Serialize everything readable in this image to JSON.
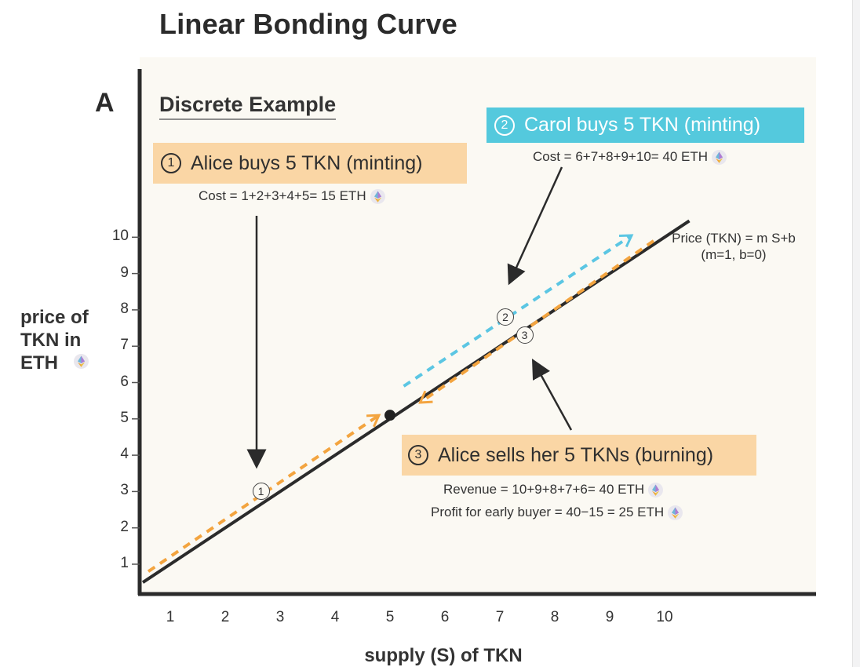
{
  "title": "Linear Bonding Curve",
  "panel_letter": "A",
  "subtitle": "Discrete Example",
  "formula": {
    "line1": "Price (TKN) = m S+b",
    "line2": "(m=1,  b=0)"
  },
  "callouts": {
    "alice_buy": {
      "number": "1",
      "text": "Alice buys 5 TKN (minting)",
      "cost": "Cost = 1+2+3+4+5= 15 ETH"
    },
    "carol_buy": {
      "number": "2",
      "text": "Carol buys 5 TKN (minting)",
      "cost": "Cost = 6+7+8+9+10= 40 ETH"
    },
    "alice_sell": {
      "number": "3",
      "text": "Alice sells her 5 TKNs (burning)",
      "revenue": "Revenue = 10+9+8+7+6= 40 ETH",
      "profit": "Profit for early buyer = 40−15 = 25 ETH"
    }
  },
  "icons": {
    "eth": "ethereum-icon"
  },
  "colors": {
    "orange_box": "#fad6a5",
    "cyan_box": "#54c9dd",
    "orange_dash": "#f3a43f",
    "cyan_dash": "#5bc6e3",
    "curve": "#2b2b2b",
    "plot_bg": "#fbf9f3"
  },
  "chart_data": {
    "type": "line",
    "title": "Linear Bonding Curve",
    "xlabel": "supply (S) of TKN",
    "ylabel": "price of TKN in ETH",
    "x_ticks": [
      "1",
      "2",
      "3",
      "4",
      "5",
      "6",
      "7",
      "8",
      "9",
      "10"
    ],
    "y_ticks": [
      "1",
      "2",
      "3",
      "4",
      "5",
      "6",
      "7",
      "8",
      "9",
      "10"
    ],
    "xlim": [
      0.5,
      10.5
    ],
    "ylim": [
      0.3,
      11
    ],
    "grid": false,
    "series": [
      {
        "style": "solid",
        "color": "#2b2b2b",
        "x": [
          0.5,
          10.45
        ],
        "y": [
          0.5,
          10.45
        ]
      },
      {
        "style": "dashed",
        "color": "#f3a43f",
        "direction": "up",
        "x": [
          0.6,
          4.8
        ],
        "y": [
          0.8,
          5.1
        ]
      },
      {
        "style": "dashed",
        "color": "#5bc6e3",
        "direction": "up",
        "x": [
          5.25,
          9.4
        ],
        "y": [
          5.9,
          10.05
        ]
      },
      {
        "style": "dashed",
        "color": "#f3a43f",
        "direction": "down",
        "x": [
          9.8,
          5.55
        ],
        "y": [
          9.9,
          5.45
        ]
      }
    ],
    "highlight_point": {
      "x": 5,
      "y": 5.1
    },
    "step_markers": [
      {
        "label": "1",
        "x": 2.65,
        "y": 3.0
      },
      {
        "label": "2",
        "x": 7.1,
        "y": 7.8
      },
      {
        "label": "3",
        "x": 7.45,
        "y": 7.3
      }
    ]
  }
}
